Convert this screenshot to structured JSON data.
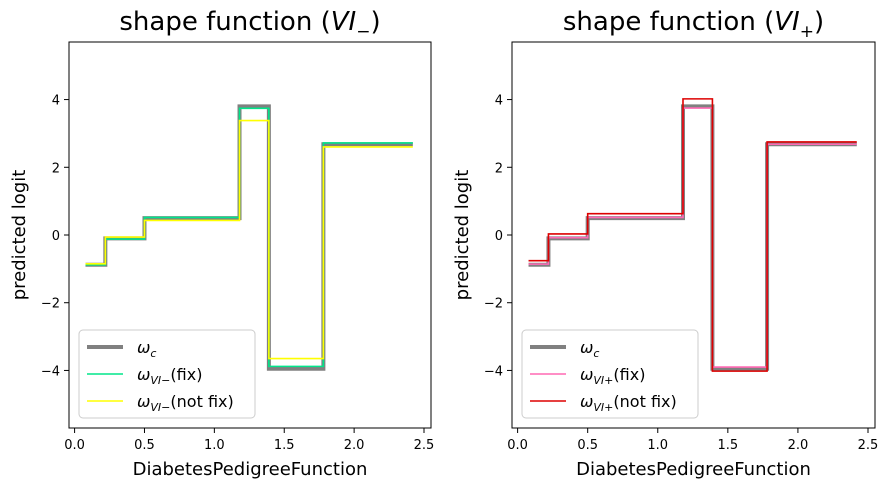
{
  "chart_data": [
    {
      "type": "line",
      "step": true,
      "title": "shape function (VI−)",
      "title_prefix": "shape function (",
      "title_var": "VI",
      "title_sub": "−",
      "title_suffix": ")",
      "xlabel": "DiabetesPedigreeFunction",
      "ylabel": "predicted logit",
      "xlim": [
        -0.04,
        2.55
      ],
      "ylim": [
        -5.7,
        5.7
      ],
      "xticks": [
        0.0,
        0.5,
        1.0,
        1.5,
        2.0,
        2.5
      ],
      "xtick_labels": [
        "0.0",
        "0.5",
        "1.0",
        "1.5",
        "2.0",
        "2.5"
      ],
      "yticks": [
        -4,
        -2,
        0,
        2,
        4
      ],
      "ytick_labels": [
        "−4",
        "−2",
        "0",
        "2",
        "4"
      ],
      "legend_position": "lower-left",
      "series": [
        {
          "name": "ω_c",
          "legend_main": "ω",
          "legend_sub": "c",
          "legend_tail": "",
          "color": "#808080",
          "x": [
            0.078,
            0.22,
            0.22,
            0.5,
            0.5,
            1.18,
            1.18,
            1.39,
            1.39,
            1.78,
            1.78,
            2.42
          ],
          "y": [
            -0.88,
            -0.88,
            -0.1,
            -0.1,
            0.5,
            0.5,
            3.8,
            3.8,
            -3.95,
            -3.95,
            2.68,
            2.68
          ]
        },
        {
          "name": "ω_VI−(fix)",
          "legend_main": "ω",
          "legend_sub": "VI−",
          "legend_tail": "(fix)",
          "color": "#00e58a",
          "x": [
            0.078,
            0.22,
            0.22,
            0.5,
            0.5,
            1.18,
            1.18,
            1.39,
            1.39,
            1.78,
            1.78,
            2.42
          ],
          "y": [
            -0.88,
            -0.88,
            -0.12,
            -0.12,
            0.52,
            0.52,
            3.74,
            3.74,
            -3.88,
            -3.88,
            2.72,
            2.72
          ]
        },
        {
          "name": "ω_VI−(not fix)",
          "legend_main": "ω",
          "legend_sub": "VI−",
          "legend_tail": "(not fix)",
          "color": "#ffff00",
          "x": [
            0.078,
            0.22,
            0.22,
            0.5,
            0.5,
            1.18,
            1.18,
            1.39,
            1.39,
            1.78,
            1.78,
            2.42
          ],
          "y": [
            -0.85,
            -0.85,
            -0.06,
            -0.06,
            0.43,
            0.43,
            3.38,
            3.38,
            -3.65,
            -3.65,
            2.6,
            2.6
          ]
        }
      ]
    },
    {
      "type": "line",
      "step": true,
      "title": "shape function (VI+)",
      "title_prefix": "shape function (",
      "title_var": "VI",
      "title_sub": "+",
      "title_suffix": ")",
      "xlabel": "DiabetesPedigreeFunction",
      "ylabel": "predicted logit",
      "xlim": [
        -0.04,
        2.55
      ],
      "ylim": [
        -5.7,
        5.7
      ],
      "xticks": [
        0.0,
        0.5,
        1.0,
        1.5,
        2.0,
        2.5
      ],
      "xtick_labels": [
        "0.0",
        "0.5",
        "1.0",
        "1.5",
        "2.0",
        "2.5"
      ],
      "yticks": [
        -4,
        -2,
        0,
        2,
        4
      ],
      "ytick_labels": [
        "−4",
        "−2",
        "0",
        "2",
        "4"
      ],
      "legend_position": "lower-left",
      "series": [
        {
          "name": "ω_c",
          "legend_main": "ω",
          "legend_sub": "c",
          "legend_tail": "",
          "color": "#808080",
          "x": [
            0.078,
            0.22,
            0.22,
            0.5,
            0.5,
            1.18,
            1.18,
            1.39,
            1.39,
            1.78,
            1.78,
            2.42
          ],
          "y": [
            -0.88,
            -0.88,
            -0.1,
            -0.1,
            0.5,
            0.5,
            3.8,
            3.8,
            -3.95,
            -3.95,
            2.68,
            2.68
          ]
        },
        {
          "name": "ω_VI+(fix)",
          "legend_main": "ω",
          "legend_sub": "VI+",
          "legend_tail": "(fix)",
          "color": "#ff69b4",
          "x": [
            0.078,
            0.22,
            0.22,
            0.5,
            0.5,
            1.18,
            1.18,
            1.39,
            1.39,
            1.78,
            1.78,
            2.42
          ],
          "y": [
            -0.86,
            -0.86,
            -0.08,
            -0.08,
            0.52,
            0.52,
            3.75,
            3.75,
            -3.9,
            -3.9,
            2.68,
            2.68
          ]
        },
        {
          "name": "ω_VI+(not fix)",
          "legend_main": "ω",
          "legend_sub": "VI+",
          "legend_tail": "(not fix)",
          "color": "#dd0000",
          "x": [
            0.078,
            0.22,
            0.22,
            0.5,
            0.5,
            1.18,
            1.18,
            1.39,
            1.39,
            1.78,
            1.78,
            2.42
          ],
          "y": [
            -0.76,
            -0.76,
            0.03,
            0.03,
            0.63,
            0.63,
            4.02,
            4.02,
            -4.02,
            -4.02,
            2.75,
            2.75
          ]
        }
      ]
    }
  ]
}
